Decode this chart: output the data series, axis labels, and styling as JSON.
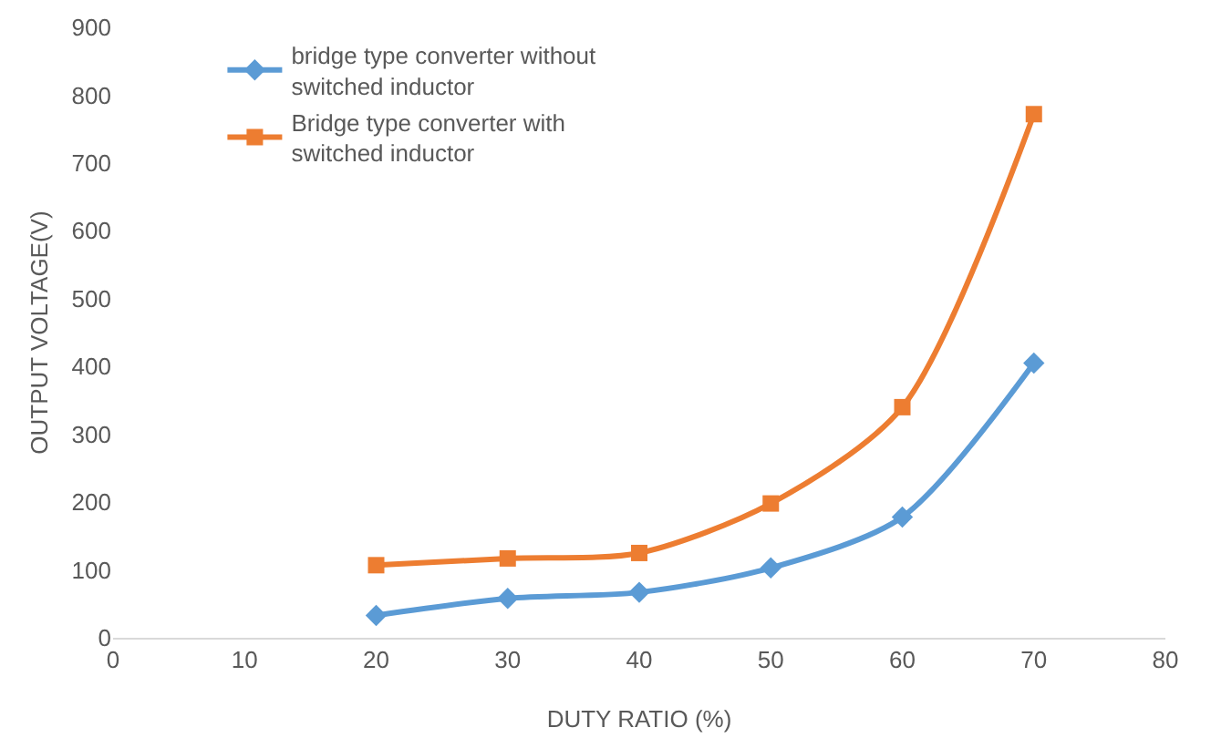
{
  "chart_data": {
    "type": "line",
    "xlabel": "DUTY RATIO (%)",
    "ylabel": "OUTPUT VOLTAGE(V)",
    "x": [
      20,
      30,
      40,
      50,
      60,
      70
    ],
    "series": [
      {
        "name": "bridge type converter without switched inductor",
        "color": "#5b9bd5",
        "marker": "diamond",
        "values": [
          33,
          58,
          67,
          103,
          178,
          405
        ]
      },
      {
        "name": "Bridge type converter with switched inductor",
        "color": "#ed7d31",
        "marker": "square",
        "values": [
          107,
          117,
          125,
          198,
          340,
          772
        ]
      }
    ],
    "xlim": [
      0,
      80
    ],
    "xticks": [
      0,
      10,
      20,
      30,
      40,
      50,
      60,
      70,
      80
    ],
    "ylim": [
      0,
      900
    ],
    "yticks": [
      0,
      100,
      200,
      300,
      400,
      500,
      600,
      700,
      800,
      900
    ],
    "grid": false,
    "legend": "top left",
    "line_style": "solid"
  }
}
